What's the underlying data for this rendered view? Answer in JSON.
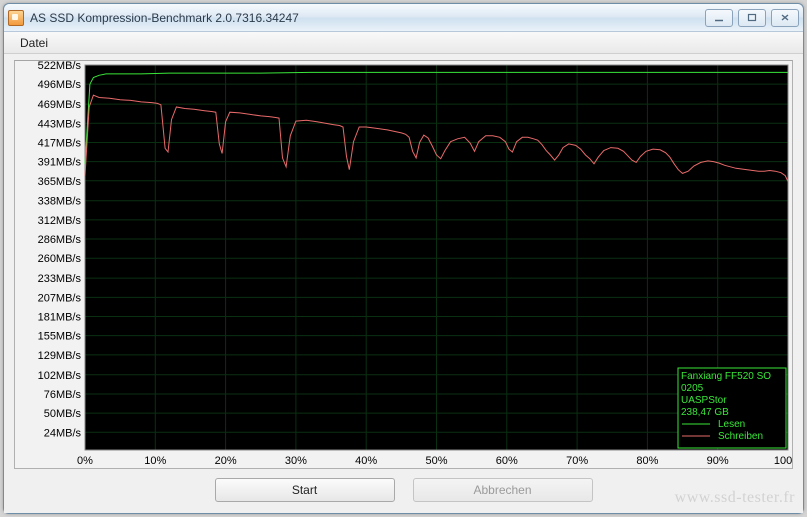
{
  "window": {
    "title": "AS SSD Kompression-Benchmark 2.0.7316.34247"
  },
  "menu": {
    "file": "Datei"
  },
  "chart": {
    "type": "line",
    "background_color": "#000000",
    "grid_color": "#0a3012",
    "axis_label_color": "#000000",
    "axis_fontsize": 11,
    "y_unit": "MB/s",
    "ylim": [
      0,
      522
    ],
    "y_ticks": [
      24,
      50,
      76,
      102,
      129,
      155,
      181,
      207,
      233,
      260,
      286,
      312,
      338,
      365,
      391,
      417,
      443,
      469,
      496,
      522
    ],
    "xlim": [
      0,
      100
    ],
    "x_ticks": [
      0,
      10,
      20,
      30,
      40,
      50,
      60,
      70,
      80,
      90,
      100
    ],
    "x_unit": "%",
    "series": [
      {
        "name": "Lesen",
        "color": "#39e639",
        "line_width": 1,
        "data": [
          [
            0,
            388
          ],
          [
            0.7,
            496
          ],
          [
            1.2,
            505
          ],
          [
            2,
            508
          ],
          [
            3,
            510
          ],
          [
            5,
            510
          ],
          [
            8,
            510
          ],
          [
            12,
            511
          ],
          [
            18,
            511
          ],
          [
            25,
            511
          ],
          [
            32,
            512
          ],
          [
            40,
            512
          ],
          [
            48,
            512
          ],
          [
            55,
            512
          ],
          [
            63,
            512
          ],
          [
            70,
            512
          ],
          [
            78,
            512
          ],
          [
            85,
            512
          ],
          [
            92,
            512
          ],
          [
            98,
            512
          ],
          [
            100,
            512
          ]
        ]
      },
      {
        "name": "Schreiben",
        "color": "#e86a6a",
        "line_width": 1,
        "data": [
          [
            0,
            372
          ],
          [
            0.6,
            465
          ],
          [
            1.2,
            481
          ],
          [
            2,
            478
          ],
          [
            3.5,
            477
          ],
          [
            5,
            475
          ],
          [
            6.5,
            474
          ],
          [
            8,
            472
          ],
          [
            9.5,
            471
          ],
          [
            10.3,
            470
          ],
          [
            10.8,
            468
          ],
          [
            11.4,
            409
          ],
          [
            11.8,
            404
          ],
          [
            12.3,
            448
          ],
          [
            13,
            465
          ],
          [
            14.2,
            463
          ],
          [
            15.5,
            462
          ],
          [
            17,
            460
          ],
          [
            18,
            459
          ],
          [
            18.6,
            458
          ],
          [
            19.1,
            415
          ],
          [
            19.5,
            402
          ],
          [
            20,
            445
          ],
          [
            20.6,
            458
          ],
          [
            22,
            457
          ],
          [
            23.5,
            455
          ],
          [
            25,
            453
          ],
          [
            26.2,
            452
          ],
          [
            27,
            451
          ],
          [
            27.6,
            450
          ],
          [
            28.1,
            396
          ],
          [
            28.6,
            384
          ],
          [
            29.2,
            426
          ],
          [
            30,
            446
          ],
          [
            31.5,
            447
          ],
          [
            33,
            445
          ],
          [
            34.2,
            443
          ],
          [
            35.4,
            441
          ],
          [
            36.2,
            440
          ],
          [
            36.7,
            438
          ],
          [
            37.2,
            398
          ],
          [
            37.6,
            380
          ],
          [
            38.2,
            418
          ],
          [
            39,
            438
          ],
          [
            40,
            438
          ],
          [
            41.5,
            436
          ],
          [
            43,
            434
          ],
          [
            44,
            432
          ],
          [
            45,
            430
          ],
          [
            45.6,
            428
          ],
          [
            46.1,
            424
          ],
          [
            46.6,
            405
          ],
          [
            47.1,
            396
          ],
          [
            47.6,
            417
          ],
          [
            48.2,
            427
          ],
          [
            48.8,
            423
          ],
          [
            49.4,
            412
          ],
          [
            50,
            400
          ],
          [
            50.6,
            395
          ],
          [
            51.2,
            406
          ],
          [
            52,
            418
          ],
          [
            53,
            422
          ],
          [
            54,
            424
          ],
          [
            54.8,
            416
          ],
          [
            55.4,
            405
          ],
          [
            56,
            418
          ],
          [
            57,
            426
          ],
          [
            58,
            426
          ],
          [
            59,
            424
          ],
          [
            59.8,
            418
          ],
          [
            60.3,
            408
          ],
          [
            60.8,
            404
          ],
          [
            61.4,
            418
          ],
          [
            62.2,
            424
          ],
          [
            63,
            424
          ],
          [
            63.8,
            422
          ],
          [
            64.4,
            420
          ],
          [
            65,
            414
          ],
          [
            65.6,
            406
          ],
          [
            66.2,
            400
          ],
          [
            66.8,
            393
          ],
          [
            67.4,
            400
          ],
          [
            68,
            410
          ],
          [
            68.8,
            415
          ],
          [
            69.8,
            413
          ],
          [
            70.5,
            408
          ],
          [
            71.2,
            400
          ],
          [
            71.8,
            395
          ],
          [
            72.4,
            388
          ],
          [
            73,
            397
          ],
          [
            73.8,
            406
          ],
          [
            74.8,
            410
          ],
          [
            75.8,
            409
          ],
          [
            76.6,
            405
          ],
          [
            77.2,
            399
          ],
          [
            77.8,
            393
          ],
          [
            78.4,
            390
          ],
          [
            79,
            398
          ],
          [
            79.8,
            405
          ],
          [
            80.8,
            408
          ],
          [
            81.8,
            407
          ],
          [
            82.6,
            403
          ],
          [
            83.2,
            397
          ],
          [
            83.8,
            388
          ],
          [
            84.4,
            380
          ],
          [
            85,
            375
          ],
          [
            85.8,
            378
          ],
          [
            86.6,
            385
          ],
          [
            87.6,
            390
          ],
          [
            88.6,
            392
          ],
          [
            89.4,
            391
          ],
          [
            90.2,
            389
          ],
          [
            91,
            386
          ],
          [
            91.8,
            384
          ],
          [
            92.6,
            382
          ],
          [
            93.4,
            381
          ],
          [
            94.2,
            380
          ],
          [
            95,
            379
          ],
          [
            95.8,
            378
          ],
          [
            96.6,
            378
          ],
          [
            97.4,
            379
          ],
          [
            98.2,
            378
          ],
          [
            99,
            376
          ],
          [
            99.6,
            372
          ],
          [
            100,
            364
          ]
        ]
      }
    ],
    "info_box": {
      "border_color": "#39e639",
      "text_color": "#39e639",
      "bg_color": "#000000",
      "fontsize": 10,
      "lines": [
        "Fanxiang FF520 SO",
        "0205",
        "UASPStor",
        "238,47 GB"
      ],
      "legend": [
        {
          "color": "#39e639",
          "label": "Lesen"
        },
        {
          "color": "#e86a6a",
          "label": "Schreiben"
        }
      ]
    }
  },
  "buttons": {
    "start": "Start",
    "abort": "Abbrechen"
  },
  "watermark": "www.ssd-tester.fr"
}
